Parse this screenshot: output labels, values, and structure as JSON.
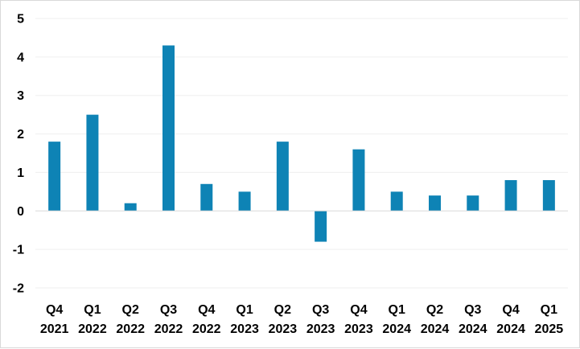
{
  "chart_data": {
    "type": "bar",
    "categories": [
      [
        "Q4",
        "2021"
      ],
      [
        "Q1",
        "2022"
      ],
      [
        "Q2",
        "2022"
      ],
      [
        "Q3",
        "2022"
      ],
      [
        "Q4",
        "2022"
      ],
      [
        "Q1",
        "2023"
      ],
      [
        "Q2",
        "2023"
      ],
      [
        "Q3",
        "2023"
      ],
      [
        "Q4",
        "2023"
      ],
      [
        "Q1",
        "2024"
      ],
      [
        "Q2",
        "2024"
      ],
      [
        "Q3",
        "2024"
      ],
      [
        "Q4",
        "2024"
      ],
      [
        "Q1",
        "2025"
      ]
    ],
    "values": [
      1.8,
      2.5,
      0.2,
      4.3,
      0.7,
      0.5,
      1.8,
      -0.8,
      1.6,
      0.5,
      0.4,
      0.4,
      0.8,
      0.8
    ],
    "title": "",
    "xlabel": "",
    "ylabel": "",
    "ylim": [
      -2,
      5
    ],
    "yticks": [
      "-2",
      "-1",
      "0",
      "1",
      "2",
      "3",
      "4",
      "5"
    ],
    "grid": true,
    "legend": "none",
    "colors": {
      "bar": "#0e83b5",
      "gridline": "#efefef",
      "zero_line": "#d9d9d9",
      "text": "#000000"
    }
  }
}
